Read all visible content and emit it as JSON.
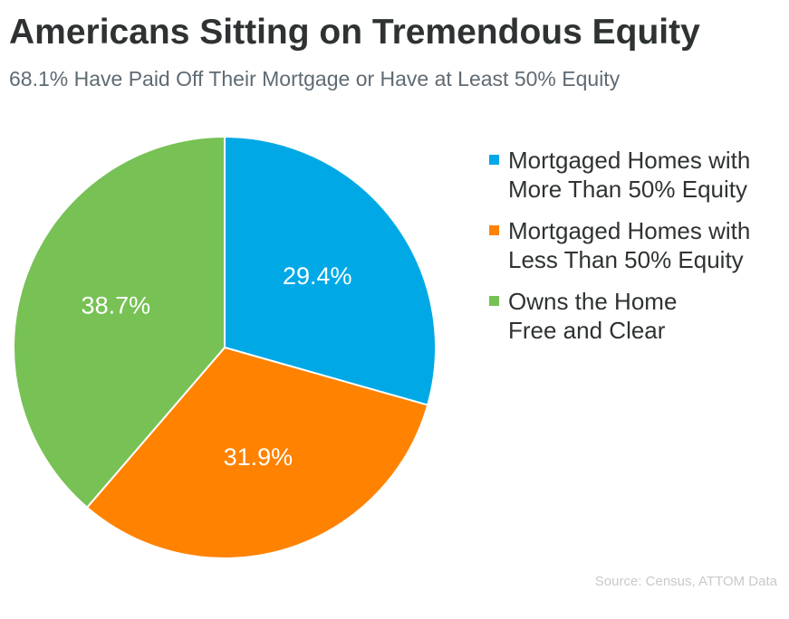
{
  "title": "Americans Sitting on Tremendous Equity",
  "subtitle": "68.1% Have Paid Off Their Mortgage or Have at Least 50% Equity",
  "source": "Source: Census, ATTOM Data",
  "chart_data": {
    "type": "pie",
    "slices": [
      {
        "label": "Mortgaged Homes with More Than 50% Equity",
        "value": 29.4,
        "data_label": "29.4%",
        "color": "#00a9e6"
      },
      {
        "label": "Mortgaged Homes with Less Than 50% Equity",
        "value": 31.9,
        "data_label": "31.9%",
        "color": "#ff8200"
      },
      {
        "label": "Owns the Home Free and Clear",
        "value": 38.7,
        "data_label": "38.7%",
        "color": "#77c155"
      }
    ],
    "legend_position": "right"
  }
}
